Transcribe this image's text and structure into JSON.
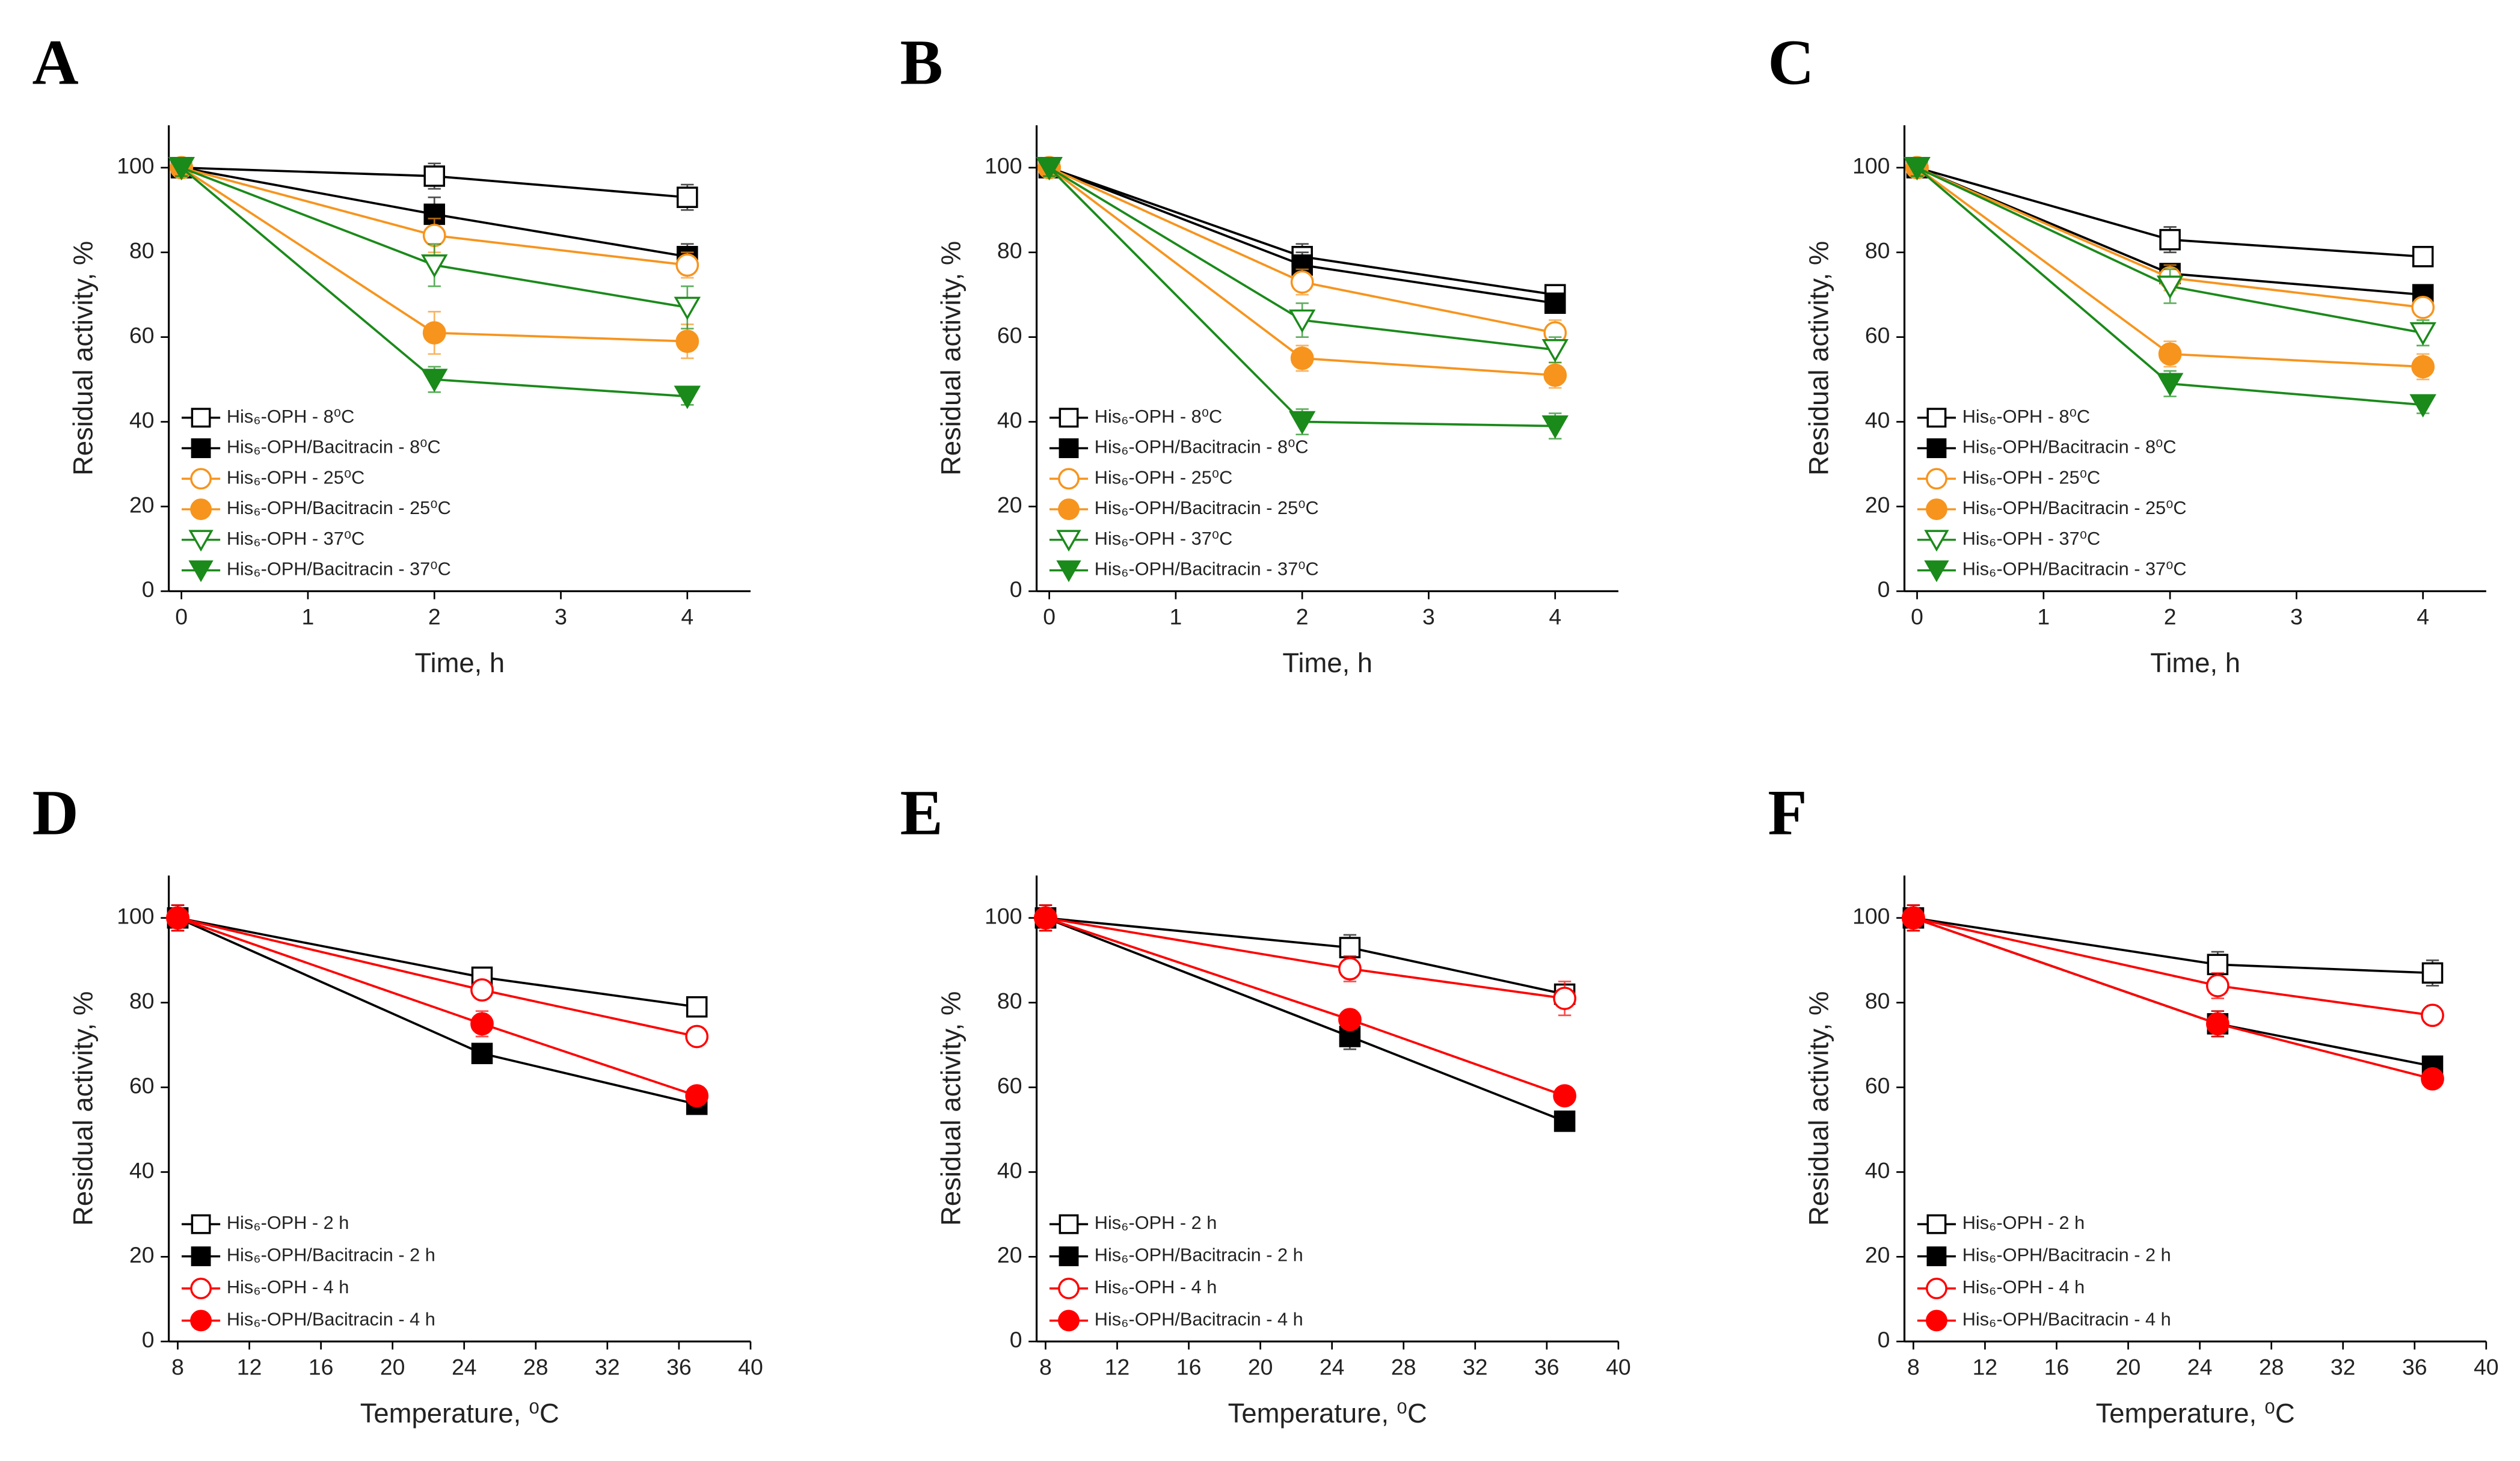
{
  "chart_data": [
    {
      "type": "line",
      "title": "A",
      "x_label": "Time, h",
      "y_label": "Residual activity, %",
      "x": [
        0,
        2,
        4
      ],
      "xlim": [
        -0.1,
        4.5
      ],
      "xticks": [
        0,
        1,
        2,
        3,
        4
      ],
      "ylim": [
        0,
        110
      ],
      "yticks": [
        0,
        20,
        40,
        60,
        80,
        100
      ],
      "series": [
        {
          "name": "His₆-OPH - 8⁰C",
          "color": "#000000",
          "marker": "square",
          "filled": false,
          "values": [
            100,
            98,
            93
          ],
          "errors": [
            2,
            3,
            3
          ]
        },
        {
          "name": "His₆-OPH/Bacitracin - 8⁰C",
          "color": "#000000",
          "marker": "square",
          "filled": true,
          "values": [
            100,
            89,
            79
          ],
          "errors": [
            2,
            4,
            3
          ]
        },
        {
          "name": "His₆-OPH - 25⁰C",
          "color": "#f7941d",
          "marker": "circle",
          "filled": false,
          "values": [
            100,
            84,
            77
          ],
          "errors": [
            2,
            4,
            3
          ]
        },
        {
          "name": "His₆-OPH/Bacitracin - 25⁰C",
          "color": "#f7941d",
          "marker": "circle",
          "filled": true,
          "values": [
            100,
            61,
            59
          ],
          "errors": [
            2,
            5,
            4
          ]
        },
        {
          "name": "His₆-OPH - 37⁰C",
          "color": "#1a8a1a",
          "marker": "triangle-down",
          "filled": false,
          "values": [
            100,
            77,
            67
          ],
          "errors": [
            2,
            5,
            5
          ]
        },
        {
          "name": "His₆-OPH/Bacitracin - 37⁰C",
          "color": "#1a8a1a",
          "marker": "triangle-down",
          "filled": true,
          "values": [
            100,
            50,
            46
          ],
          "errors": [
            2,
            3,
            2
          ]
        }
      ]
    },
    {
      "type": "line",
      "title": "B",
      "x_label": "Time, h",
      "y_label": "Residual activity, %",
      "x": [
        0,
        2,
        4
      ],
      "xlim": [
        -0.1,
        4.5
      ],
      "xticks": [
        0,
        1,
        2,
        3,
        4
      ],
      "ylim": [
        0,
        110
      ],
      "yticks": [
        0,
        20,
        40,
        60,
        80,
        100
      ],
      "series": [
        {
          "name": "His₆-OPH - 8⁰C",
          "color": "#000000",
          "marker": "square",
          "filled": false,
          "values": [
            100,
            79,
            70
          ],
          "errors": [
            2,
            3,
            2
          ]
        },
        {
          "name": "His₆-OPH/Bacitracin - 8⁰C",
          "color": "#000000",
          "marker": "square",
          "filled": true,
          "values": [
            100,
            77,
            68
          ],
          "errors": [
            2,
            3,
            2
          ]
        },
        {
          "name": "His₆-OPH - 25⁰C",
          "color": "#f7941d",
          "marker": "circle",
          "filled": false,
          "values": [
            100,
            73,
            61
          ],
          "errors": [
            2,
            3,
            3
          ]
        },
        {
          "name": "His₆-OPH/Bacitracin - 25⁰C",
          "color": "#f7941d",
          "marker": "circle",
          "filled": true,
          "values": [
            100,
            55,
            51
          ],
          "errors": [
            2,
            3,
            3
          ]
        },
        {
          "name": "His₆-OPH - 37⁰C",
          "color": "#1a8a1a",
          "marker": "triangle-down",
          "filled": false,
          "values": [
            100,
            64,
            57
          ],
          "errors": [
            2,
            4,
            3
          ]
        },
        {
          "name": "His₆-OPH/Bacitracin - 37⁰C",
          "color": "#1a8a1a",
          "marker": "triangle-down",
          "filled": true,
          "values": [
            100,
            40,
            39
          ],
          "errors": [
            2,
            3,
            3
          ]
        }
      ]
    },
    {
      "type": "line",
      "title": "C",
      "x_label": "Time, h",
      "y_label": "Residual activity, %",
      "x": [
        0,
        2,
        4
      ],
      "xlim": [
        -0.1,
        4.5
      ],
      "xticks": [
        0,
        1,
        2,
        3,
        4
      ],
      "ylim": [
        0,
        110
      ],
      "yticks": [
        0,
        20,
        40,
        60,
        80,
        100
      ],
      "series": [
        {
          "name": "His₆-OPH - 8⁰C",
          "color": "#000000",
          "marker": "square",
          "filled": false,
          "values": [
            100,
            83,
            79
          ],
          "errors": [
            2,
            3,
            2
          ]
        },
        {
          "name": "His₆-OPH/Bacitracin - 8⁰C",
          "color": "#000000",
          "marker": "square",
          "filled": true,
          "values": [
            100,
            75,
            70
          ],
          "errors": [
            2,
            2,
            2
          ]
        },
        {
          "name": "His₆-OPH - 25⁰C",
          "color": "#f7941d",
          "marker": "circle",
          "filled": false,
          "values": [
            100,
            74,
            67
          ],
          "errors": [
            2,
            3,
            2
          ]
        },
        {
          "name": "His₆-OPH/Bacitracin - 25⁰C",
          "color": "#f7941d",
          "marker": "circle",
          "filled": true,
          "values": [
            100,
            56,
            53
          ],
          "errors": [
            2,
            3,
            3
          ]
        },
        {
          "name": "His₆-OPH - 37⁰C",
          "color": "#1a8a1a",
          "marker": "triangle-down",
          "filled": false,
          "values": [
            100,
            72,
            61
          ],
          "errors": [
            2,
            4,
            3
          ]
        },
        {
          "name": "His₆-OPH/Bacitracin - 37⁰C",
          "color": "#1a8a1a",
          "marker": "triangle-down",
          "filled": true,
          "values": [
            100,
            49,
            44
          ],
          "errors": [
            2,
            3,
            2
          ]
        }
      ]
    },
    {
      "type": "line",
      "title": "D",
      "x_label": "Temperature, ⁰C",
      "y_label": "Residual activity, %",
      "x": [
        8,
        25,
        37
      ],
      "xlim": [
        7.5,
        40
      ],
      "xticks": [
        8,
        12,
        16,
        20,
        24,
        28,
        32,
        36,
        40
      ],
      "ylim": [
        0,
        110
      ],
      "yticks": [
        0,
        20,
        40,
        60,
        80,
        100
      ],
      "series": [
        {
          "name": "His₆-OPH - 2 h",
          "color": "#000000",
          "marker": "square",
          "filled": false,
          "values": [
            100,
            86,
            79
          ],
          "errors": [
            3,
            2,
            2
          ]
        },
        {
          "name": "His₆-OPH/Bacitracin - 2 h",
          "color": "#000000",
          "marker": "square",
          "filled": true,
          "values": [
            100,
            68,
            56
          ],
          "errors": [
            3,
            2,
            2
          ]
        },
        {
          "name": "His₆-OPH - 4 h",
          "color": "#ff0000",
          "marker": "circle",
          "filled": false,
          "values": [
            100,
            83,
            72
          ],
          "errors": [
            3,
            2,
            2
          ]
        },
        {
          "name": "His₆-OPH/Bacitracin - 4 h",
          "color": "#ff0000",
          "marker": "circle",
          "filled": true,
          "values": [
            100,
            75,
            58
          ],
          "errors": [
            3,
            3,
            2
          ]
        }
      ]
    },
    {
      "type": "line",
      "title": "E",
      "x_label": "Temperature, ⁰C",
      "y_label": "Residual activity, %",
      "x": [
        8,
        25,
        37
      ],
      "xlim": [
        7.5,
        40
      ],
      "xticks": [
        8,
        12,
        16,
        20,
        24,
        28,
        32,
        36,
        40
      ],
      "ylim": [
        0,
        110
      ],
      "yticks": [
        0,
        20,
        40,
        60,
        80,
        100
      ],
      "series": [
        {
          "name": "His₆-OPH - 2 h",
          "color": "#000000",
          "marker": "square",
          "filled": false,
          "values": [
            100,
            93,
            82
          ],
          "errors": [
            3,
            3,
            2
          ]
        },
        {
          "name": "His₆-OPH/Bacitracin - 2 h",
          "color": "#000000",
          "marker": "square",
          "filled": true,
          "values": [
            100,
            72,
            52
          ],
          "errors": [
            3,
            3,
            2
          ]
        },
        {
          "name": "His₆-OPH - 4 h",
          "color": "#ff0000",
          "marker": "circle",
          "filled": false,
          "values": [
            100,
            88,
            81
          ],
          "errors": [
            3,
            3,
            4
          ]
        },
        {
          "name": "His₆-OPH/Bacitracin - 4 h",
          "color": "#ff0000",
          "marker": "circle",
          "filled": true,
          "values": [
            100,
            76,
            58
          ],
          "errors": [
            3,
            2,
            2
          ]
        }
      ]
    },
    {
      "type": "line",
      "title": "F",
      "x_label": "Temperature, ⁰C",
      "y_label": "Residual activity, %",
      "x": [
        8,
        25,
        37
      ],
      "xlim": [
        7.5,
        40
      ],
      "xticks": [
        8,
        12,
        16,
        20,
        24,
        28,
        32,
        36,
        40
      ],
      "ylim": [
        0,
        110
      ],
      "yticks": [
        0,
        20,
        40,
        60,
        80,
        100
      ],
      "series": [
        {
          "name": "His₆-OPH - 2 h",
          "color": "#000000",
          "marker": "square",
          "filled": false,
          "values": [
            100,
            89,
            87
          ],
          "errors": [
            3,
            3,
            3
          ]
        },
        {
          "name": "His₆-OPH/Bacitracin - 2 h",
          "color": "#000000",
          "marker": "square",
          "filled": true,
          "values": [
            100,
            75,
            65
          ],
          "errors": [
            3,
            3,
            2
          ]
        },
        {
          "name": "His₆-OPH - 4 h",
          "color": "#ff0000",
          "marker": "circle",
          "filled": false,
          "values": [
            100,
            84,
            77
          ],
          "errors": [
            3,
            3,
            2
          ]
        },
        {
          "name": "His₆-OPH/Bacitracin - 4 h",
          "color": "#ff0000",
          "marker": "circle",
          "filled": true,
          "values": [
            100,
            75,
            62
          ],
          "errors": [
            3,
            3,
            2
          ]
        }
      ]
    }
  ]
}
